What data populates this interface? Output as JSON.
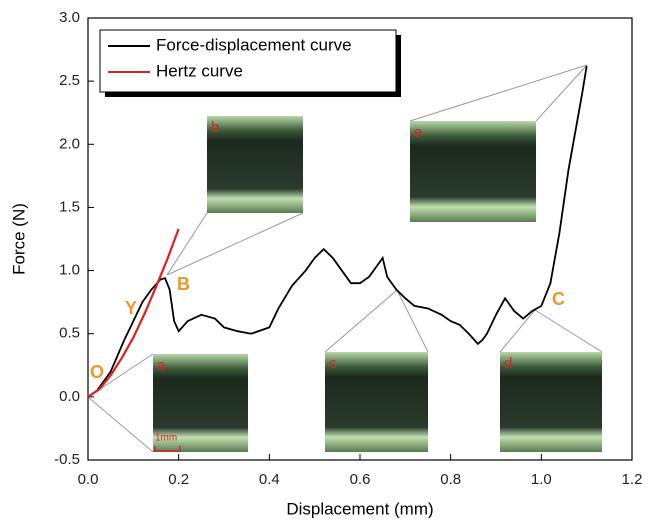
{
  "chart_data": {
    "type": "line",
    "xlabel": "Displacement (mm)",
    "ylabel": "Force (N)",
    "xlim": [
      0,
      1.2
    ],
    "ylim": [
      -0.5,
      3
    ],
    "xticks": [
      {
        "value": 0,
        "label": "0.0"
      },
      0.2,
      0.4,
      0.6,
      0.8,
      {
        "value": 1,
        "label": "1.0"
      },
      1.2
    ],
    "yticks": [
      {
        "value": -0.5,
        "label": "-0.5"
      },
      {
        "value": 0,
        "label": "0.0"
      },
      0.5,
      {
        "value": 1,
        "label": "1.0"
      },
      1.5,
      {
        "value": 2,
        "label": "2.0"
      },
      2.5,
      {
        "value": 3,
        "label": "3.0"
      }
    ],
    "legend": "upper left",
    "series": [
      {
        "name": "Force-displacement curve",
        "color": "#000000",
        "x": [
          0,
          0.02,
          0.05,
          0.08,
          0.1,
          0.12,
          0.14,
          0.16,
          0.17,
          0.18,
          0.19,
          0.2,
          0.22,
          0.25,
          0.28,
          0.3,
          0.33,
          0.36,
          0.4,
          0.42,
          0.45,
          0.48,
          0.5,
          0.52,
          0.54,
          0.56,
          0.58,
          0.6,
          0.62,
          0.64,
          0.65,
          0.66,
          0.68,
          0.7,
          0.72,
          0.75,
          0.78,
          0.8,
          0.82,
          0.84,
          0.86,
          0.87,
          0.88,
          0.9,
          0.92,
          0.94,
          0.96,
          0.98,
          1.0,
          1.02,
          1.04,
          1.06,
          1.08,
          1.09,
          1.1
        ],
        "values": [
          0,
          0.05,
          0.2,
          0.45,
          0.6,
          0.75,
          0.85,
          0.93,
          0.94,
          0.85,
          0.6,
          0.52,
          0.6,
          0.65,
          0.62,
          0.55,
          0.52,
          0.5,
          0.55,
          0.7,
          0.88,
          1.0,
          1.1,
          1.17,
          1.1,
          1.0,
          0.9,
          0.9,
          0.95,
          1.05,
          1.1,
          0.95,
          0.85,
          0.78,
          0.72,
          0.7,
          0.65,
          0.6,
          0.57,
          0.5,
          0.42,
          0.45,
          0.5,
          0.65,
          0.78,
          0.68,
          0.62,
          0.68,
          0.72,
          0.9,
          1.3,
          1.8,
          2.2,
          2.4,
          2.62
        ]
      },
      {
        "name": "Hertz curve",
        "color": "#e02020",
        "x": [
          0,
          0.025,
          0.05,
          0.075,
          0.1,
          0.125,
          0.15,
          0.175,
          0.2
        ],
        "values": [
          0,
          0.06,
          0.17,
          0.31,
          0.47,
          0.66,
          0.87,
          1.09,
          1.33
        ]
      }
    ],
    "annotations": [
      "O",
      "Y",
      "B",
      "C"
    ],
    "insets": [
      "a",
      "b",
      "c",
      "d",
      "e"
    ],
    "scale_label": "1mm"
  }
}
